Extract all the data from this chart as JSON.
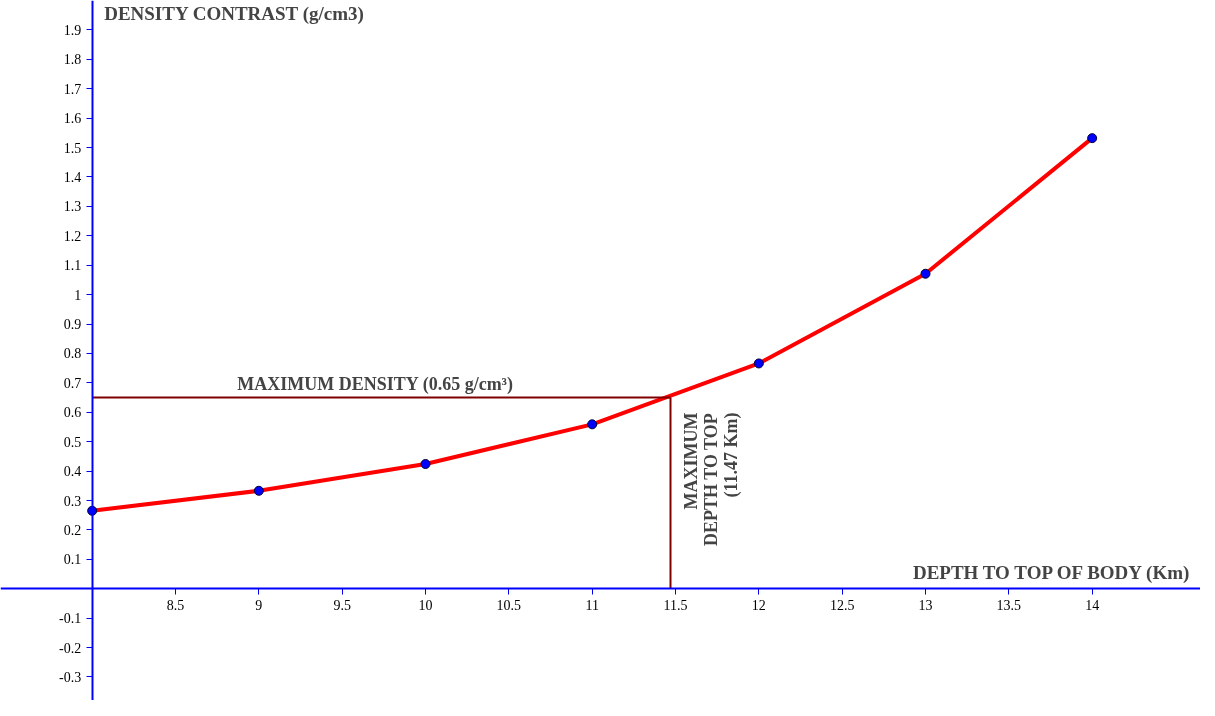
{
  "chart_data": {
    "type": "line",
    "xlabel": "DEPTH TO TOP OF BODY (Km)",
    "ylabel": "DENSITY CONTRAST (g/cm3)",
    "xlim": [
      7.45,
      14.65
    ],
    "ylim": [
      -0.38,
      2.0
    ],
    "xticks": [
      8.5,
      9,
      9.5,
      10,
      10.5,
      11,
      11.5,
      12,
      12.5,
      13,
      13.5,
      14
    ],
    "yticks": [
      -0.3,
      -0.2,
      -0.1,
      0.1,
      0.2,
      0.3,
      0.4,
      0.5,
      0.6,
      0.7,
      0.8,
      0.9,
      1,
      1.1,
      1.2,
      1.3,
      1.4,
      1.5,
      1.6,
      1.7,
      1.8,
      1.9
    ],
    "marker": "circle",
    "grid": false,
    "series": [
      {
        "color": "#ff0000",
        "x": [
          8,
          9,
          10,
          11,
          12,
          13,
          14
        ],
        "values": [
          0.265,
          0.333,
          0.424,
          0.559,
          0.766,
          1.071,
          1.532
        ]
      },
      {
        "color": "#800000",
        "marker": "none",
        "x": [
          8,
          11.47
        ],
        "values": [
          0.65,
          0.65
        ]
      },
      {
        "color": "#800000",
        "marker": "none",
        "x": [
          11.47,
          11.47
        ],
        "values": [
          0,
          0.65
        ]
      }
    ],
    "annotations": [
      {
        "text": "MAXIMUM DENSITY (0.65 g/cm³)",
        "x": 9.7,
        "y": 0.65
      },
      {
        "text": "MAXIMUM\nDEPTH TO TOP\n(11.47 Km)",
        "x": 11.47,
        "y": 0.65
      }
    ]
  }
}
